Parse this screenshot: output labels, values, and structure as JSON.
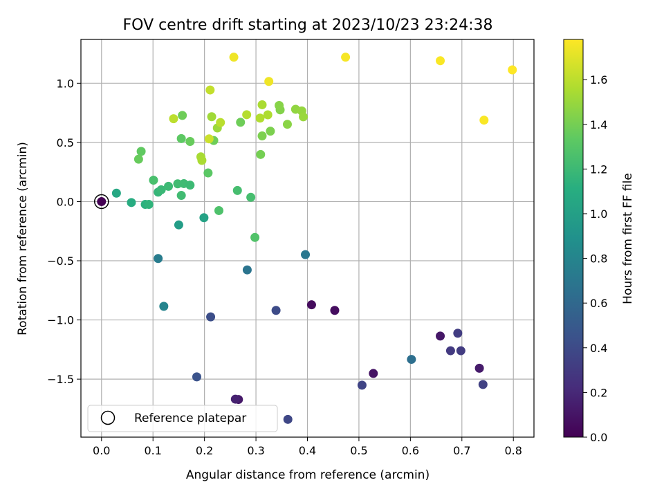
{
  "chart_data": {
    "type": "scatter",
    "title": "FOV centre drift starting at 2023/10/23 23:24:38",
    "xlabel": "Angular distance from reference (arcmin)",
    "ylabel": "Rotation from reference (arcmin)",
    "xlim": [
      -0.04,
      0.84
    ],
    "ylim": [
      -1.99,
      1.37
    ],
    "xticks": [
      0.0,
      0.1,
      0.2,
      0.3,
      0.4,
      0.5,
      0.6,
      0.7,
      0.8
    ],
    "xtick_labels": [
      "0.0",
      "0.1",
      "0.2",
      "0.3",
      "0.4",
      "0.5",
      "0.6",
      "0.7",
      "0.8"
    ],
    "yticks": [
      -1.5,
      -1.0,
      -0.5,
      0.0,
      0.5,
      1.0
    ],
    "ytick_labels": [
      "−1.5",
      "−1.0",
      "−0.5",
      "0.0",
      "0.5",
      "1.0"
    ],
    "grid": true,
    "colormap": "viridis",
    "colorbar": {
      "label": "Hours from first FF file",
      "range": [
        0.0,
        1.78
      ],
      "ticks": [
        0.0,
        0.2,
        0.4,
        0.6,
        0.8,
        1.0,
        1.2,
        1.4,
        1.6
      ],
      "tick_labels": [
        "0.0",
        "0.2",
        "0.4",
        "0.6",
        "0.8",
        "1.0",
        "1.2",
        "1.4",
        "1.6"
      ]
    },
    "legend": {
      "label": "Reference platepar",
      "position": "lower-left"
    },
    "reference": {
      "x": 0.0,
      "y": 0.0,
      "c": 0.0
    },
    "points": [
      {
        "x": 0.408,
        "y": -0.872,
        "c": 0.05
      },
      {
        "x": 0.453,
        "y": -0.919,
        "c": 0.06
      },
      {
        "x": 0.528,
        "y": -1.452,
        "c": 0.09
      },
      {
        "x": 0.658,
        "y": -1.136,
        "c": 0.11
      },
      {
        "x": 0.734,
        "y": -1.408,
        "c": 0.13
      },
      {
        "x": 0.266,
        "y": -1.672,
        "c": 0.12
      },
      {
        "x": 0.26,
        "y": -1.669,
        "c": 0.16
      },
      {
        "x": 0.678,
        "y": -1.26,
        "c": 0.3
      },
      {
        "x": 0.698,
        "y": -1.26,
        "c": 0.31
      },
      {
        "x": 0.692,
        "y": -1.112,
        "c": 0.32
      },
      {
        "x": 0.741,
        "y": -1.545,
        "c": 0.34
      },
      {
        "x": 0.506,
        "y": -1.551,
        "c": 0.36
      },
      {
        "x": 0.362,
        "y": -1.84,
        "c": 0.38
      },
      {
        "x": 0.339,
        "y": -0.919,
        "c": 0.4
      },
      {
        "x": 0.212,
        "y": -0.974,
        "c": 0.42
      },
      {
        "x": 0.185,
        "y": -1.481,
        "c": 0.45
      },
      {
        "x": 0.602,
        "y": -1.333,
        "c": 0.65
      },
      {
        "x": 0.283,
        "y": -0.577,
        "c": 0.68
      },
      {
        "x": 0.396,
        "y": -0.448,
        "c": 0.7
      },
      {
        "x": 0.11,
        "y": -0.481,
        "c": 0.74
      },
      {
        "x": 0.121,
        "y": -0.885,
        "c": 0.8
      },
      {
        "x": 0.15,
        "y": -0.197,
        "c": 0.98
      },
      {
        "x": 0.199,
        "y": -0.136,
        "c": 1.02
      },
      {
        "x": 0.029,
        "y": 0.071,
        "c": 1.06
      },
      {
        "x": 0.058,
        "y": -0.008,
        "c": 1.1
      },
      {
        "x": 0.085,
        "y": -0.024,
        "c": 1.13
      },
      {
        "x": 0.092,
        "y": -0.024,
        "c": 1.15
      },
      {
        "x": 0.11,
        "y": 0.08,
        "c": 1.17
      },
      {
        "x": 0.116,
        "y": 0.1,
        "c": 1.19
      },
      {
        "x": 0.13,
        "y": 0.129,
        "c": 1.2
      },
      {
        "x": 0.148,
        "y": 0.15,
        "c": 1.22
      },
      {
        "x": 0.16,
        "y": 0.152,
        "c": 1.21
      },
      {
        "x": 0.172,
        "y": 0.139,
        "c": 1.2
      },
      {
        "x": 0.155,
        "y": 0.052,
        "c": 1.22
      },
      {
        "x": 0.264,
        "y": 0.094,
        "c": 1.24
      },
      {
        "x": 0.29,
        "y": 0.036,
        "c": 1.24
      },
      {
        "x": 0.228,
        "y": -0.076,
        "c": 1.27
      },
      {
        "x": 0.298,
        "y": -0.303,
        "c": 1.28
      },
      {
        "x": 0.101,
        "y": 0.181,
        "c": 1.25
      },
      {
        "x": 0.207,
        "y": 0.242,
        "c": 1.32
      },
      {
        "x": 0.155,
        "y": 0.532,
        "c": 1.33
      },
      {
        "x": 0.077,
        "y": 0.424,
        "c": 1.34
      },
      {
        "x": 0.072,
        "y": 0.358,
        "c": 1.36
      },
      {
        "x": 0.172,
        "y": 0.508,
        "c": 1.36
      },
      {
        "x": 0.218,
        "y": 0.516,
        "c": 1.38
      },
      {
        "x": 0.157,
        "y": 0.728,
        "c": 1.38
      },
      {
        "x": 0.27,
        "y": 0.67,
        "c": 1.38
      },
      {
        "x": 0.309,
        "y": 0.398,
        "c": 1.4
      },
      {
        "x": 0.312,
        "y": 0.555,
        "c": 1.42
      },
      {
        "x": 0.328,
        "y": 0.595,
        "c": 1.42
      },
      {
        "x": 0.347,
        "y": 0.775,
        "c": 1.44
      },
      {
        "x": 0.345,
        "y": 0.812,
        "c": 1.45
      },
      {
        "x": 0.361,
        "y": 0.653,
        "c": 1.46
      },
      {
        "x": 0.377,
        "y": 0.78,
        "c": 1.48
      },
      {
        "x": 0.389,
        "y": 0.766,
        "c": 1.49
      },
      {
        "x": 0.392,
        "y": 0.716,
        "c": 1.5
      },
      {
        "x": 0.225,
        "y": 0.622,
        "c": 1.51
      },
      {
        "x": 0.214,
        "y": 0.717,
        "c": 1.52
      },
      {
        "x": 0.193,
        "y": 0.378,
        "c": 1.54
      },
      {
        "x": 0.195,
        "y": 0.348,
        "c": 1.55
      },
      {
        "x": 0.312,
        "y": 0.818,
        "c": 1.55
      },
      {
        "x": 0.323,
        "y": 0.733,
        "c": 1.56
      },
      {
        "x": 0.308,
        "y": 0.705,
        "c": 1.57
      },
      {
        "x": 0.282,
        "y": 0.734,
        "c": 1.58
      },
      {
        "x": 0.231,
        "y": 0.668,
        "c": 1.59
      },
      {
        "x": 0.14,
        "y": 0.7,
        "c": 1.6
      },
      {
        "x": 0.211,
        "y": 0.943,
        "c": 1.62
      },
      {
        "x": 0.209,
        "y": 0.53,
        "c": 1.64
      },
      {
        "x": 0.257,
        "y": 1.22,
        "c": 1.74
      },
      {
        "x": 0.325,
        "y": 1.015,
        "c": 1.74
      },
      {
        "x": 0.474,
        "y": 1.22,
        "c": 1.76
      },
      {
        "x": 0.658,
        "y": 1.19,
        "c": 1.77
      },
      {
        "x": 0.743,
        "y": 0.688,
        "c": 1.77
      },
      {
        "x": 0.798,
        "y": 1.113,
        "c": 1.78
      }
    ]
  }
}
